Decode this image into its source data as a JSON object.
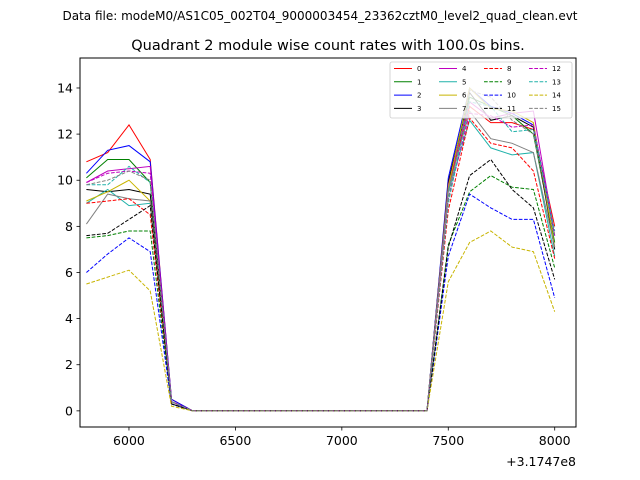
{
  "suptitle": "Data file: modeM0/AS1C05_002T04_9000003454_23362cztM0_level2_quad_clean.evt",
  "chart_data": {
    "type": "line",
    "title": "Quadrant 2 module wise count rates with 100.0s bins.",
    "xlabel": "",
    "ylabel": "",
    "x_offset_label": "+3.1747e8",
    "xlim": [
      5770,
      8100
    ],
    "ylim": [
      -0.7,
      15.3
    ],
    "x_ticks": [
      6000,
      6500,
      7000,
      7500,
      8000
    ],
    "x_tick_labels": [
      "6000",
      "6500",
      "7000",
      "7500",
      "8000"
    ],
    "y_ticks": [
      0,
      2,
      4,
      6,
      8,
      10,
      12,
      14
    ],
    "y_tick_labels": [
      "0",
      "2",
      "4",
      "6",
      "8",
      "10",
      "12",
      "14"
    ],
    "grid": false,
    "legend_position": "top-right",
    "legend_columns": 4,
    "x": [
      5800,
      5900,
      6000,
      6100,
      6200,
      6300,
      6400,
      6500,
      6600,
      6700,
      6800,
      6900,
      7000,
      7100,
      7200,
      7300,
      7400,
      7500,
      7600,
      7700,
      7800,
      7900,
      8000
    ],
    "series": [
      {
        "name": "0",
        "color": "#ff0000",
        "dash": "solid",
        "values": [
          10.8,
          11.2,
          12.4,
          10.9,
          0.5,
          0,
          0,
          0,
          0,
          0,
          0,
          0,
          0,
          0,
          0,
          0,
          0,
          9.7,
          13.2,
          12.5,
          12.5,
          12.2,
          8.0
        ]
      },
      {
        "name": "1",
        "color": "#008000",
        "dash": "solid",
        "values": [
          10.1,
          10.9,
          10.9,
          9.9,
          0.4,
          0,
          0,
          0,
          0,
          0,
          0,
          0,
          0,
          0,
          0,
          0,
          0,
          9.9,
          13.6,
          13.2,
          12.8,
          12.0,
          7.3
        ]
      },
      {
        "name": "2",
        "color": "#0000ff",
        "dash": "solid",
        "values": [
          10.3,
          11.3,
          11.5,
          10.8,
          0.5,
          0,
          0,
          0,
          0,
          0,
          0,
          0,
          0,
          0,
          0,
          0,
          0,
          10.1,
          14.0,
          13.2,
          12.9,
          12.4,
          7.6
        ]
      },
      {
        "name": "3",
        "color": "#000000",
        "dash": "solid",
        "values": [
          9.6,
          9.5,
          9.6,
          9.4,
          0.4,
          0,
          0,
          0,
          0,
          0,
          0,
          0,
          0,
          0,
          0,
          0,
          0,
          9.9,
          13.8,
          12.6,
          12.8,
          12.3,
          7.0
        ]
      },
      {
        "name": "4",
        "color": "#bf00bf",
        "dash": "solid",
        "values": [
          9.9,
          10.4,
          10.5,
          10.6,
          0.4,
          0,
          0,
          0,
          0,
          0,
          0,
          0,
          0,
          0,
          0,
          0,
          0,
          9.8,
          13.4,
          12.7,
          12.9,
          13.0,
          7.6
        ]
      },
      {
        "name": "5",
        "color": "#20b2aa",
        "dash": "solid",
        "values": [
          9.0,
          9.6,
          8.9,
          9.0,
          0.3,
          0,
          0,
          0,
          0,
          0,
          0,
          0,
          0,
          0,
          0,
          0,
          0,
          9.5,
          12.6,
          11.4,
          11.1,
          11.2,
          6.7
        ]
      },
      {
        "name": "6",
        "color": "#c8b400",
        "dash": "solid",
        "values": [
          9.1,
          9.5,
          10.0,
          9.1,
          0.3,
          0,
          0,
          0,
          0,
          0,
          0,
          0,
          0,
          0,
          0,
          0,
          0,
          9.7,
          14.0,
          13.1,
          13.0,
          12.5,
          7.1
        ]
      },
      {
        "name": "7",
        "color": "#808080",
        "dash": "solid",
        "values": [
          8.1,
          9.4,
          9.2,
          9.1,
          0.3,
          0,
          0,
          0,
          0,
          0,
          0,
          0,
          0,
          0,
          0,
          0,
          0,
          9.6,
          13.0,
          11.8,
          11.6,
          11.2,
          7.1
        ]
      },
      {
        "name": "8",
        "color": "#ff0000",
        "dash": "dashed",
        "values": [
          9.0,
          9.1,
          9.2,
          8.5,
          0.3,
          0,
          0,
          0,
          0,
          0,
          0,
          0,
          0,
          0,
          0,
          0,
          0,
          8.7,
          12.7,
          11.6,
          11.4,
          10.4,
          6.6
        ]
      },
      {
        "name": "9",
        "color": "#008000",
        "dash": "dashed",
        "values": [
          7.5,
          7.6,
          7.8,
          7.8,
          0.3,
          0,
          0,
          0,
          0,
          0,
          0,
          0,
          0,
          0,
          0,
          0,
          0,
          7.2,
          9.5,
          10.2,
          9.7,
          9.6,
          6.2
        ]
      },
      {
        "name": "10",
        "color": "#0000ff",
        "dash": "dashed",
        "values": [
          6.0,
          6.8,
          7.5,
          6.9,
          0.3,
          0,
          0,
          0,
          0,
          0,
          0,
          0,
          0,
          0,
          0,
          0,
          0,
          6.7,
          9.4,
          8.8,
          8.3,
          8.3,
          4.9
        ]
      },
      {
        "name": "11",
        "color": "#000000",
        "dash": "dashed",
        "values": [
          7.6,
          7.7,
          8.3,
          8.9,
          0.3,
          0,
          0,
          0,
          0,
          0,
          0,
          0,
          0,
          0,
          0,
          0,
          0,
          7.1,
          10.2,
          10.9,
          9.6,
          8.8,
          5.7
        ]
      },
      {
        "name": "12",
        "color": "#bf00bf",
        "dash": "dashed",
        "values": [
          9.9,
          10.3,
          10.4,
          10.3,
          0.4,
          0,
          0,
          0,
          0,
          0,
          0,
          0,
          0,
          0,
          0,
          0,
          0,
          9.2,
          12.9,
          12.8,
          12.3,
          12.4,
          7.6
        ]
      },
      {
        "name": "13",
        "color": "#20b2aa",
        "dash": "dashed",
        "values": [
          9.8,
          9.8,
          10.6,
          9.9,
          0.4,
          0,
          0,
          0,
          0,
          0,
          0,
          0,
          0,
          0,
          0,
          0,
          0,
          9.0,
          13.4,
          13.2,
          12.1,
          12.2,
          7.8
        ]
      },
      {
        "name": "14",
        "color": "#c8b400",
        "dash": "dashed",
        "values": [
          5.5,
          5.8,
          6.1,
          5.2,
          0.2,
          0,
          0,
          0,
          0,
          0,
          0,
          0,
          0,
          0,
          0,
          0,
          0,
          5.6,
          7.3,
          7.8,
          7.1,
          6.9,
          4.3
        ]
      },
      {
        "name": "15",
        "color": "#808080",
        "dash": "dashed",
        "values": [
          9.8,
          10.0,
          10.4,
          10.0,
          0.4,
          0,
          0,
          0,
          0,
          0,
          0,
          0,
          0,
          0,
          0,
          0,
          0,
          9.2,
          13.9,
          13.6,
          12.6,
          12.0,
          7.6
        ]
      }
    ]
  }
}
